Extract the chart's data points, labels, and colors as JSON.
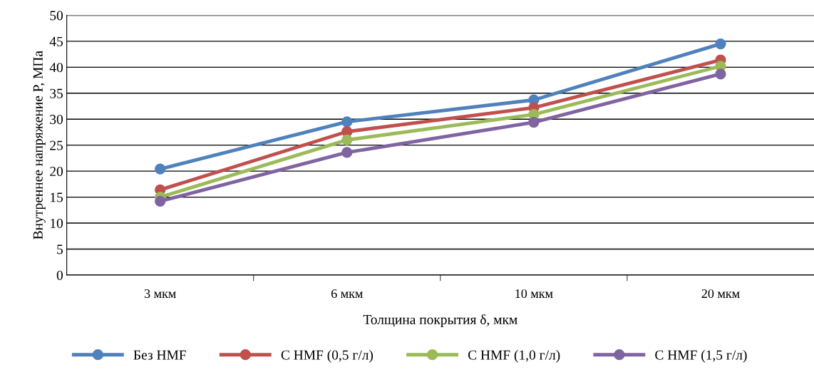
{
  "chart_data": {
    "type": "line",
    "xlabel": "Толщина покрытия δ, мкм",
    "ylabel": "Внутреннее напряжение P, МПа",
    "categories": [
      "3 мкм",
      "6 мкм",
      "10 мкм",
      "20 мкм"
    ],
    "series": [
      {
        "name": "Без HMF",
        "color": "#4f81bd",
        "values": [
          20.4,
          29.5,
          33.7,
          44.5
        ]
      },
      {
        "name": "С HMF (0,5 г/л)",
        "color": "#c0504d",
        "values": [
          16.4,
          27.6,
          32.2,
          41.4
        ]
      },
      {
        "name": "С HMF (1,0 г/л)",
        "color": "#9bbb59",
        "values": [
          15.0,
          26.0,
          30.9,
          40.2
        ]
      },
      {
        "name": "С HMF (1,5 г/л)",
        "color": "#8064a2",
        "values": [
          14.2,
          23.6,
          29.4,
          38.7
        ]
      }
    ],
    "ylim": [
      0,
      50
    ],
    "yticks": [
      0,
      5,
      10,
      15,
      20,
      25,
      30,
      35,
      40,
      45,
      50
    ],
    "grid": "y",
    "legend": "bottom",
    "marker": "circle",
    "line_style": "solid"
  }
}
